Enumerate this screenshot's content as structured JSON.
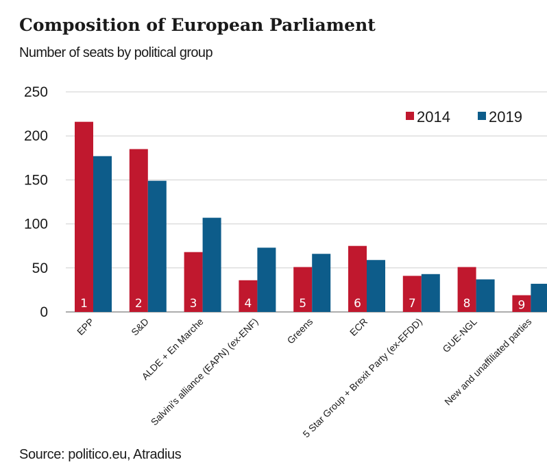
{
  "title": "Composition of European Parliament",
  "subtitle": "Number of seats by political group",
  "source": "Source: politico.eu, Atradius",
  "colors": {
    "s2014": "#c0182e",
    "s2019": "#0d5c8a",
    "grid": "#cfcfcf",
    "axis": "#5a5a5a"
  },
  "chart_data": {
    "type": "bar",
    "categories": [
      "EPP",
      "S&D",
      "ALDE + En Marche",
      "Salvini's alliance (EAPN) (ex-ENF)",
      "Greens",
      "ECR",
      "5 Star Group + Brexit Party (ex-EFDD)",
      "GUE-NGL",
      "New and unaffiliated parties"
    ],
    "bar_numbers": [
      "1",
      "2",
      "3",
      "4",
      "5",
      "6",
      "7",
      "8",
      "9"
    ],
    "series": [
      {
        "name": "2014",
        "values": [
          216,
          185,
          68,
          36,
          51,
          75,
          41,
          51,
          19
        ]
      },
      {
        "name": "2019",
        "values": [
          177,
          149,
          107,
          73,
          66,
          59,
          43,
          37,
          32
        ]
      }
    ],
    "ylim": [
      0,
      250
    ],
    "yticks": [
      0,
      50,
      100,
      150,
      200,
      250
    ],
    "grid": true,
    "legend_position": "top-right"
  }
}
